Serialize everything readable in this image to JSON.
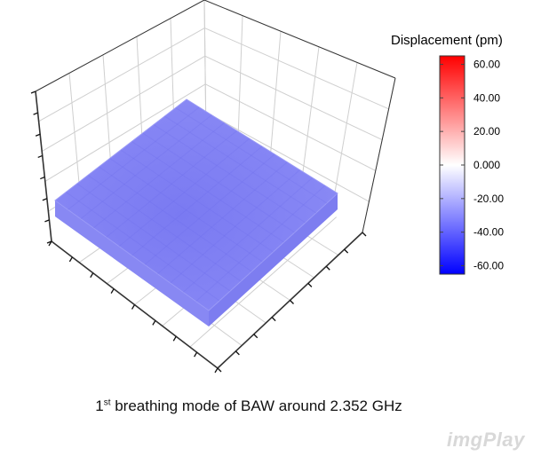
{
  "chart_data": {
    "type": "surface3d",
    "caption": {
      "prefix": "1",
      "superscript": "st",
      "text": " breathing mode of BAW around 2.352 GHz"
    },
    "colorbar": {
      "title": "Displacement (pm)",
      "range": [
        -65,
        65
      ],
      "tick_labels": [
        "60.00",
        "40.00",
        "20.00",
        "0.000",
        "-20.00",
        "-40.00",
        "-60.00"
      ],
      "tick_values": [
        60,
        40,
        20,
        0,
        -20,
        -40,
        -60
      ],
      "colors": {
        "low": "#0000ff",
        "mid": "#ffffff",
        "high": "#ff0000"
      }
    },
    "surface": {
      "displacement_pm": -25,
      "color": "#7373f0"
    },
    "grid": true
  },
  "watermark": "imgPlay"
}
